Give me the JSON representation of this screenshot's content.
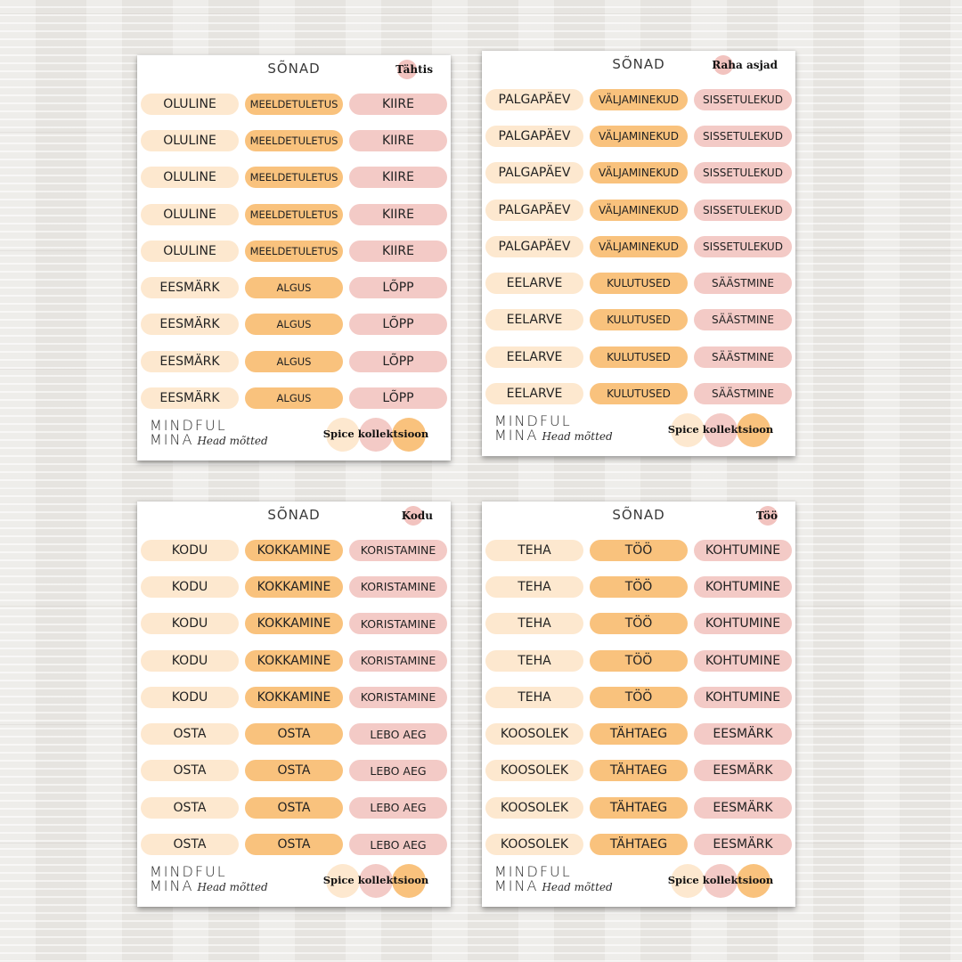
{
  "colors": {
    "cream": "#fde8cf",
    "orange": "#f9c27d",
    "pink": "#f3cac6",
    "background": "#e9e7e3"
  },
  "sheets": [
    {
      "title": "SÕNAD",
      "tag": "Tähtis",
      "rows": [
        [
          "OLULINE",
          "MEELDETULETUS",
          "KIIRE"
        ],
        [
          "OLULINE",
          "MEELDETULETUS",
          "KIIRE"
        ],
        [
          "OLULINE",
          "MEELDETULETUS",
          "KIIRE"
        ],
        [
          "OLULINE",
          "MEELDETULETUS",
          "KIIRE"
        ],
        [
          "OLULINE",
          "MEELDETULETUS",
          "KIIRE"
        ],
        [
          "EESMÄRK",
          "ALGUS",
          "LÕPP"
        ],
        [
          "EESMÄRK",
          "ALGUS",
          "LÕPP"
        ],
        [
          "EESMÄRK",
          "ALGUS",
          "LÕPP"
        ],
        [
          "EESMÄRK",
          "ALGUS",
          "LÕPP"
        ]
      ],
      "brand_line1": "MINDFUL",
      "brand_line2": "MINA",
      "brand_sub": "Head mõtted",
      "collection": "Spice kollektsioon"
    },
    {
      "title": "SÕNAD",
      "tag": "Raha asjad",
      "rows": [
        [
          "PALGAPÄEV",
          "VÄLJAMINEKUD",
          "SISSETULEKUD"
        ],
        [
          "PALGAPÄEV",
          "VÄLJAMINEKUD",
          "SISSETULEKUD"
        ],
        [
          "PALGAPÄEV",
          "VÄLJAMINEKUD",
          "SISSETULEKUD"
        ],
        [
          "PALGAPÄEV",
          "VÄLJAMINEKUD",
          "SISSETULEKUD"
        ],
        [
          "PALGAPÄEV",
          "VÄLJAMINEKUD",
          "SISSETULEKUD"
        ],
        [
          "EELARVE",
          "KULUTUSED",
          "SÄÄSTMINE"
        ],
        [
          "EELARVE",
          "KULUTUSED",
          "SÄÄSTMINE"
        ],
        [
          "EELARVE",
          "KULUTUSED",
          "SÄÄSTMINE"
        ],
        [
          "EELARVE",
          "KULUTUSED",
          "SÄÄSTMINE"
        ]
      ],
      "brand_line1": "MINDFUL",
      "brand_line2": "MINA",
      "brand_sub": "Head mõtted",
      "collection": "Spice kollektsioon"
    },
    {
      "title": "SÕNAD",
      "tag": "Kodu",
      "rows": [
        [
          "KODU",
          "KOKKAMINE",
          "KORISTAMINE"
        ],
        [
          "KODU",
          "KOKKAMINE",
          "KORISTAMINE"
        ],
        [
          "KODU",
          "KOKKAMINE",
          "KORISTAMINE"
        ],
        [
          "KODU",
          "KOKKAMINE",
          "KORISTAMINE"
        ],
        [
          "KODU",
          "KOKKAMINE",
          "KORISTAMINE"
        ],
        [
          "OSTA",
          "OSTA",
          "LEBO AEG"
        ],
        [
          "OSTA",
          "OSTA",
          "LEBO AEG"
        ],
        [
          "OSTA",
          "OSTA",
          "LEBO AEG"
        ],
        [
          "OSTA",
          "OSTA",
          "LEBO AEG"
        ]
      ],
      "brand_line1": "MINDFUL",
      "brand_line2": "MINA",
      "brand_sub": "Head mõtted",
      "collection": "Spice kollektsioon"
    },
    {
      "title": "SÕNAD",
      "tag": "Töö",
      "rows": [
        [
          "TEHA",
          "TÖÖ",
          "KOHTUMINE"
        ],
        [
          "TEHA",
          "TÖÖ",
          "KOHTUMINE"
        ],
        [
          "TEHA",
          "TÖÖ",
          "KOHTUMINE"
        ],
        [
          "TEHA",
          "TÖÖ",
          "KOHTUMINE"
        ],
        [
          "TEHA",
          "TÖÖ",
          "KOHTUMINE"
        ],
        [
          "KOOSOLEK",
          "TÄHTAEG",
          "EESMÄRK"
        ],
        [
          "KOOSOLEK",
          "TÄHTAEG",
          "EESMÄRK"
        ],
        [
          "KOOSOLEK",
          "TÄHTAEG",
          "EESMÄRK"
        ],
        [
          "KOOSOLEK",
          "TÄHTAEG",
          "EESMÄRK"
        ]
      ],
      "brand_line1": "MINDFUL",
      "brand_line2": "MINA",
      "brand_sub": "Head mõtted",
      "collection": "Spice kollektsioon"
    }
  ]
}
